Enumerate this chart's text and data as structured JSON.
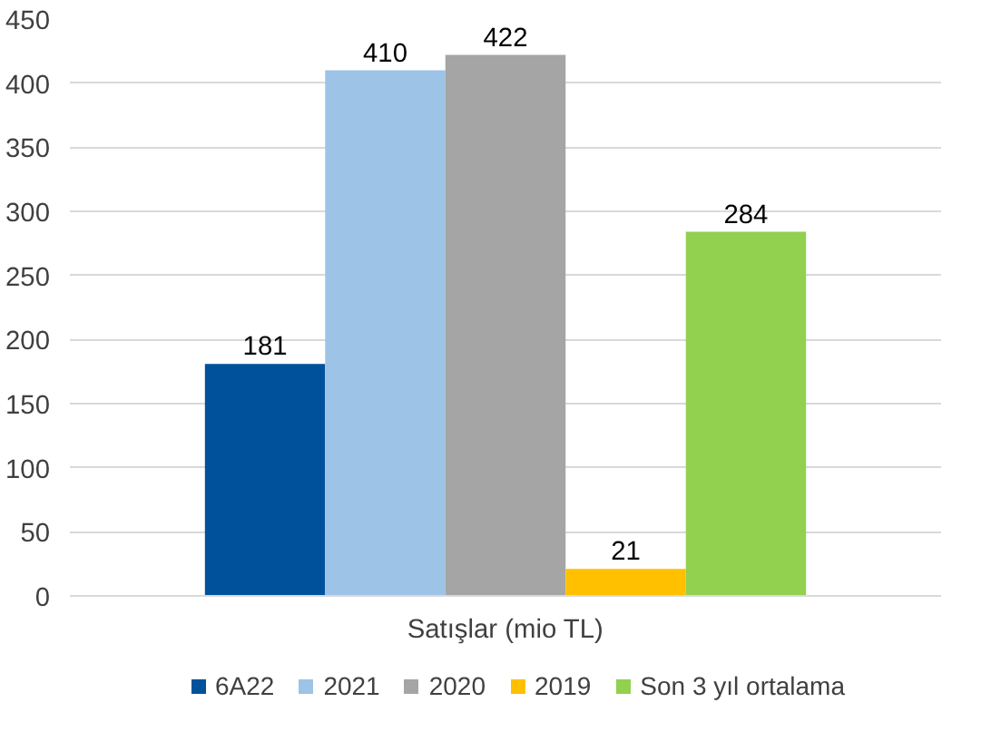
{
  "chart_data": {
    "type": "bar",
    "categories": [
      "Satışlar (mio TL)"
    ],
    "series": [
      {
        "name": "6A22",
        "color": "#00519c",
        "values": [
          181
        ]
      },
      {
        "name": "2021",
        "color": "#9dc3e6",
        "values": [
          410
        ]
      },
      {
        "name": "2020",
        "color": "#a5a5a5",
        "values": [
          422
        ]
      },
      {
        "name": "2019",
        "color": "#ffc000",
        "values": [
          21
        ]
      },
      {
        "name": "Son 3 yıl ortalama",
        "color": "#92d050",
        "values": [
          284
        ]
      }
    ],
    "ylim": [
      0,
      450
    ],
    "yticks": [
      0,
      50,
      100,
      150,
      200,
      250,
      300,
      350,
      400,
      450
    ],
    "grid": "y",
    "legend": "bottom",
    "data_labels": true
  }
}
